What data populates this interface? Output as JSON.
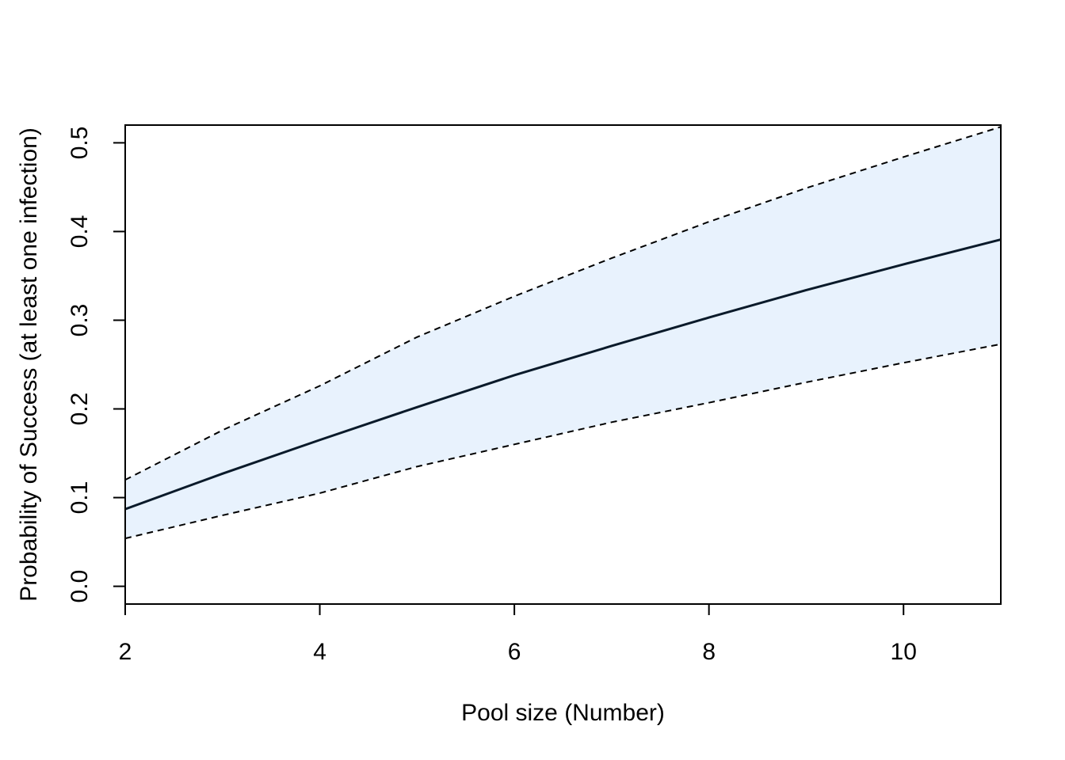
{
  "chart_data": {
    "type": "line",
    "title": "",
    "xlabel": "Pool size (Number)",
    "ylabel": "Probability of Success (at least one infection)",
    "xlim": [
      2,
      11
    ],
    "ylim": [
      -0.02,
      0.52
    ],
    "x_ticks": [
      2,
      4,
      6,
      8,
      10
    ],
    "x_tick_labels": [
      "2",
      "4",
      "6",
      "8",
      "10"
    ],
    "y_ticks": [
      0.0,
      0.1,
      0.2,
      0.3,
      0.4,
      0.5
    ],
    "y_tick_labels": [
      "0.0",
      "0.1",
      "0.2",
      "0.3",
      "0.4",
      "0.5"
    ],
    "grid": false,
    "x": [
      2,
      3,
      4,
      5,
      6,
      7,
      8,
      9,
      10,
      11
    ],
    "series": [
      {
        "values": [
          0.087,
          0.127,
          0.165,
          0.202,
          0.238,
          0.271,
          0.303,
          0.334,
          0.363,
          0.391
        ]
      },
      {
        "values": [
          0.054,
          0.08,
          0.105,
          0.135,
          0.16,
          0.185,
          0.207,
          0.23,
          0.252,
          0.273
        ]
      },
      {
        "values": [
          0.12,
          0.176,
          0.226,
          0.281,
          0.327,
          0.37,
          0.411,
          0.449,
          0.484,
          0.518
        ]
      }
    ],
    "colors": {
      "band_fill": "#e8f2fd",
      "line": "#0a1a2a",
      "axis": "#000000"
    }
  }
}
